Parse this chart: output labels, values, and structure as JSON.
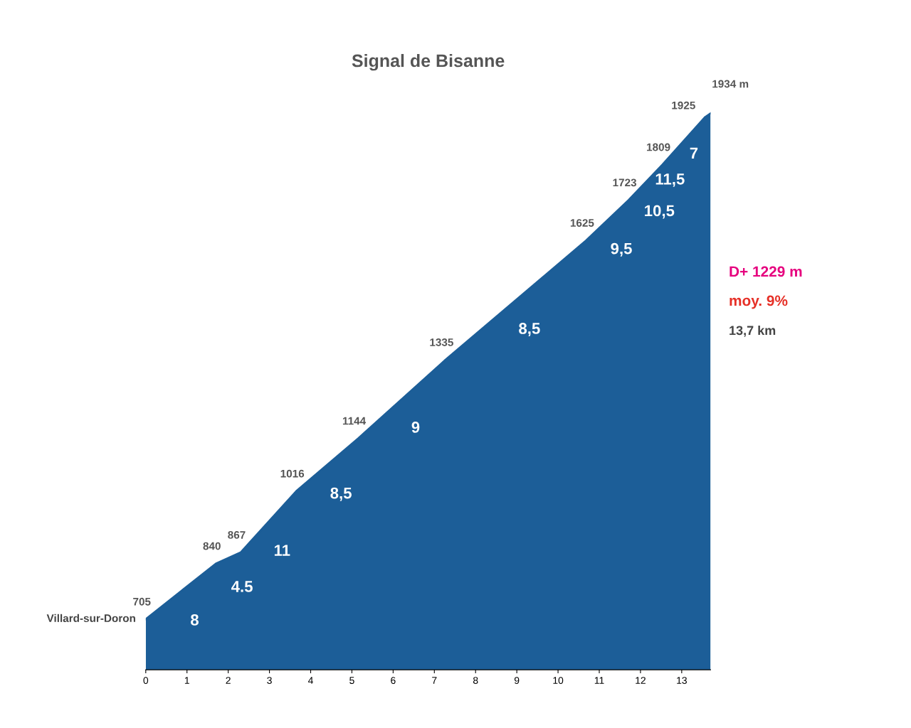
{
  "chart_data": {
    "type": "area",
    "title": "Signal de Bisanne",
    "x": [
      0,
      1.7,
      2.3,
      3.65,
      5.15,
      7.27,
      10.68,
      11.71,
      12.53,
      13.57,
      13.7
    ],
    "series": [
      {
        "color": "#1c5e98",
        "values": [
          705,
          840,
          867,
          1016,
          1144,
          1335,
          1625,
          1723,
          1809,
          1925,
          1934
        ],
        "value_labels": [
          "705",
          "840",
          "867",
          "1016",
          "1144",
          "1335",
          "1625",
          "1723",
          "1809",
          "1925",
          "1934 m"
        ]
      }
    ],
    "xlim": [
      0,
      13.7
    ],
    "xticks": [
      0,
      1,
      2,
      3,
      4,
      5,
      6,
      7,
      8,
      9,
      10,
      11,
      12,
      13
    ],
    "grid": false,
    "legend": false,
    "marker": "none",
    "line_style": "solid",
    "annotations": [
      {
        "text": "Villard-sur-Doron",
        "x": 0,
        "y": 705
      },
      {
        "text": "8",
        "x": 0.85,
        "y": 772
      },
      {
        "text": "4.5",
        "x": 2.0,
        "y": 853
      },
      {
        "text": "11",
        "x": 2.97,
        "y": 941
      },
      {
        "text": "8,5",
        "x": 4.4,
        "y": 1080
      },
      {
        "text": "9",
        "x": 6.21,
        "y": 1240
      },
      {
        "text": "8,5",
        "x": 8.97,
        "y": 1480
      },
      {
        "text": "9,5",
        "x": 11.2,
        "y": 1674
      },
      {
        "text": "10,5",
        "x": 12.12,
        "y": 1766
      },
      {
        "text": "11,5",
        "x": 13.05,
        "y": 1867
      },
      {
        "text": "7",
        "x": 13.63,
        "y": 1930
      },
      "D+ 1229 m",
      "moy. 9%",
      "13,7 km"
    ]
  }
}
